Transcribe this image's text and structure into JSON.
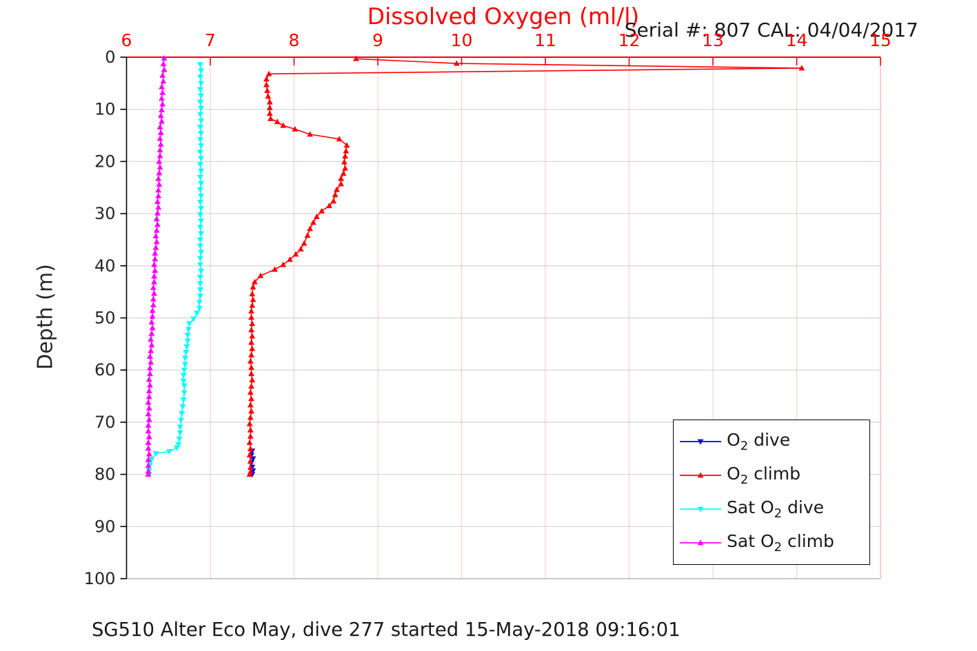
{
  "title": "Dissolved Oxygen (ml/l)",
  "annotation": "Serial #: 807  CAL: 04/04/2017",
  "caption": "SG510 Alter Eco May, dive 277 started 15-May-2018 09:16:01",
  "colors": {
    "axis_x": "#ff0000",
    "axis_y": "#000000",
    "grid_x": "rgba(255,0,0,0.16)",
    "grid_y": "rgba(0,0,0,0.15)",
    "tick_label_x": "#ff0000",
    "tick_label_y": "#262626"
  },
  "chart_data": {
    "type": "line",
    "title": "Dissolved Oxygen (ml/l)",
    "xlabel": "Dissolved Oxygen (ml/l)",
    "ylabel": "Depth (m)",
    "xlim": [
      6,
      15
    ],
    "ylim": [
      0,
      100
    ],
    "y_inverted": true,
    "x_axis_position": "top",
    "x_ticks": [
      6,
      7,
      8,
      9,
      10,
      11,
      12,
      13,
      14,
      15
    ],
    "y_ticks": [
      0,
      10,
      20,
      30,
      40,
      50,
      60,
      70,
      80,
      90,
      100
    ],
    "grid": "on",
    "legend_position": "lower right",
    "series": [
      {
        "name": "O2 dive",
        "label_pre": "O",
        "label_sub": "2",
        "label_post": " dive",
        "color": "#0000dd",
        "marker": "down",
        "points": [
          [
            7.5,
            75.5
          ],
          [
            7.49,
            76.3
          ],
          [
            7.51,
            77.0
          ],
          [
            7.49,
            77.8
          ],
          [
            7.5,
            78.6
          ],
          [
            7.51,
            79.3
          ],
          [
            7.5,
            80.0
          ]
        ]
      },
      {
        "name": "O2 climb",
        "label_pre": "O",
        "label_sub": "2",
        "label_post": " climb",
        "color": "#ff0000",
        "marker": "up",
        "points": [
          [
            8.74,
            0.3
          ],
          [
            9.94,
            1.2
          ],
          [
            14.06,
            2.1
          ],
          [
            7.7,
            3.2
          ],
          [
            7.67,
            4.2
          ],
          [
            7.67,
            5.3
          ],
          [
            7.68,
            6.4
          ],
          [
            7.69,
            7.5
          ],
          [
            7.71,
            8.6
          ],
          [
            7.71,
            9.7
          ],
          [
            7.71,
            10.8
          ],
          [
            7.72,
            11.8
          ],
          [
            7.8,
            12.4
          ],
          [
            7.87,
            13.1
          ],
          [
            8.01,
            13.8
          ],
          [
            8.19,
            14.8
          ],
          [
            8.54,
            15.7
          ],
          [
            8.63,
            16.9
          ],
          [
            8.62,
            18.0
          ],
          [
            8.61,
            19.0
          ],
          [
            8.6,
            20.1
          ],
          [
            8.61,
            21.3
          ],
          [
            8.59,
            22.3
          ],
          [
            8.56,
            23.3
          ],
          [
            8.56,
            24.3
          ],
          [
            8.51,
            25.4
          ],
          [
            8.49,
            26.4
          ],
          [
            8.47,
            27.6
          ],
          [
            8.42,
            28.5
          ],
          [
            8.33,
            29.5
          ],
          [
            8.27,
            30.6
          ],
          [
            8.23,
            31.7
          ],
          [
            8.19,
            32.9
          ],
          [
            8.16,
            34.2
          ],
          [
            8.12,
            35.7
          ],
          [
            8.08,
            36.8
          ],
          [
            8.02,
            37.8
          ],
          [
            7.95,
            38.8
          ],
          [
            7.87,
            39.8
          ],
          [
            7.77,
            40.7
          ],
          [
            7.6,
            41.9
          ],
          [
            7.53,
            43.1
          ],
          [
            7.51,
            44.1
          ],
          [
            7.5,
            45.4
          ],
          [
            7.51,
            46.5
          ],
          [
            7.5,
            47.6
          ],
          [
            7.49,
            48.7
          ],
          [
            7.49,
            49.9
          ],
          [
            7.5,
            51.1
          ],
          [
            7.49,
            52.3
          ],
          [
            7.5,
            53.5
          ],
          [
            7.49,
            54.7
          ],
          [
            7.5,
            55.9
          ],
          [
            7.49,
            57.1
          ],
          [
            7.48,
            58.3
          ],
          [
            7.49,
            59.5
          ],
          [
            7.49,
            60.7
          ],
          [
            7.5,
            61.9
          ],
          [
            7.49,
            63.1
          ],
          [
            7.48,
            64.3
          ],
          [
            7.49,
            65.5
          ],
          [
            7.48,
            66.7
          ],
          [
            7.49,
            67.9
          ],
          [
            7.48,
            69.1
          ],
          [
            7.47,
            70.3
          ],
          [
            7.48,
            71.5
          ],
          [
            7.48,
            72.7
          ],
          [
            7.47,
            73.9
          ],
          [
            7.48,
            75.1
          ],
          [
            7.47,
            76.3
          ],
          [
            7.48,
            77.5
          ],
          [
            7.48,
            78.7
          ],
          [
            7.48,
            79.5
          ],
          [
            7.47,
            80.0
          ]
        ]
      },
      {
        "name": "Sat O2 dive",
        "label_pre": "Sat O",
        "label_sub": "2",
        "label_post": " dive",
        "color": "#00ffff",
        "marker": "down",
        "points": [
          [
            6.88,
            1.4
          ],
          [
            6.89,
            2.6
          ],
          [
            6.88,
            3.8
          ],
          [
            6.89,
            5.0
          ],
          [
            6.88,
            6.2
          ],
          [
            6.89,
            7.4
          ],
          [
            6.88,
            8.6
          ],
          [
            6.89,
            9.8
          ],
          [
            6.88,
            11.0
          ],
          [
            6.89,
            12.2
          ],
          [
            6.88,
            13.4
          ],
          [
            6.89,
            14.6
          ],
          [
            6.88,
            15.8
          ],
          [
            6.89,
            17.0
          ],
          [
            6.88,
            18.2
          ],
          [
            6.89,
            19.4
          ],
          [
            6.88,
            20.6
          ],
          [
            6.89,
            21.8
          ],
          [
            6.88,
            23.0
          ],
          [
            6.89,
            24.2
          ],
          [
            6.88,
            25.4
          ],
          [
            6.89,
            26.6
          ],
          [
            6.88,
            27.8
          ],
          [
            6.89,
            29.0
          ],
          [
            6.88,
            30.2
          ],
          [
            6.89,
            31.4
          ],
          [
            6.88,
            32.6
          ],
          [
            6.89,
            33.8
          ],
          [
            6.88,
            35.0
          ],
          [
            6.88,
            36.2
          ],
          [
            6.89,
            37.4
          ],
          [
            6.88,
            38.6
          ],
          [
            6.88,
            39.8
          ],
          [
            6.89,
            41.0
          ],
          [
            6.88,
            42.2
          ],
          [
            6.88,
            43.4
          ],
          [
            6.88,
            44.6
          ],
          [
            6.88,
            45.8
          ],
          [
            6.87,
            47.0
          ],
          [
            6.87,
            48.1
          ],
          [
            6.84,
            49.1
          ],
          [
            6.8,
            50.2
          ],
          [
            6.75,
            51.1
          ],
          [
            6.74,
            52.2
          ],
          [
            6.73,
            53.3
          ],
          [
            6.73,
            54.4
          ],
          [
            6.72,
            55.5
          ],
          [
            6.71,
            56.6
          ],
          [
            6.7,
            57.7
          ],
          [
            6.7,
            58.9
          ],
          [
            6.69,
            60.0
          ],
          [
            6.68,
            61.0
          ],
          [
            6.68,
            62.1
          ],
          [
            6.69,
            63.0
          ],
          [
            6.69,
            64.3
          ],
          [
            6.68,
            65.7
          ],
          [
            6.67,
            67.0
          ],
          [
            6.66,
            68.3
          ],
          [
            6.65,
            69.6
          ],
          [
            6.64,
            70.9
          ],
          [
            6.64,
            72.0
          ],
          [
            6.63,
            73.2
          ],
          [
            6.62,
            74.3
          ],
          [
            6.6,
            74.9
          ],
          [
            6.51,
            75.6
          ],
          [
            6.35,
            76.0
          ],
          [
            6.3,
            77.1
          ],
          [
            6.28,
            78.2
          ],
          [
            6.27,
            79.3
          ],
          [
            6.27,
            80.0
          ]
        ]
      },
      {
        "name": "Sat O2 climb",
        "label_pre": "Sat O",
        "label_sub": "2",
        "label_post": " climb",
        "color": "#ff00ff",
        "marker": "up",
        "points": [
          [
            6.45,
            0.2
          ],
          [
            6.44,
            1.3
          ],
          [
            6.45,
            2.4
          ],
          [
            6.43,
            3.5
          ],
          [
            6.44,
            4.6
          ],
          [
            6.42,
            5.7
          ],
          [
            6.43,
            6.8
          ],
          [
            6.42,
            7.9
          ],
          [
            6.43,
            9.0
          ],
          [
            6.42,
            10.1
          ],
          [
            6.41,
            11.2
          ],
          [
            6.42,
            12.3
          ],
          [
            6.4,
            13.4
          ],
          [
            6.41,
            14.5
          ],
          [
            6.4,
            15.6
          ],
          [
            6.41,
            16.7
          ],
          [
            6.4,
            17.8
          ],
          [
            6.4,
            18.9
          ],
          [
            6.39,
            20.0
          ],
          [
            6.4,
            21.1
          ],
          [
            6.39,
            22.2
          ],
          [
            6.38,
            23.3
          ],
          [
            6.39,
            24.4
          ],
          [
            6.38,
            25.5
          ],
          [
            6.38,
            26.6
          ],
          [
            6.37,
            27.7
          ],
          [
            6.38,
            28.8
          ],
          [
            6.37,
            29.9
          ],
          [
            6.36,
            31.0
          ],
          [
            6.37,
            32.1
          ],
          [
            6.36,
            33.2
          ],
          [
            6.35,
            34.3
          ],
          [
            6.36,
            35.4
          ],
          [
            6.35,
            36.5
          ],
          [
            6.34,
            37.6
          ],
          [
            6.34,
            38.7
          ],
          [
            6.33,
            39.8
          ],
          [
            6.34,
            40.9
          ],
          [
            6.33,
            42.0
          ],
          [
            6.33,
            43.1
          ],
          [
            6.32,
            44.2
          ],
          [
            6.33,
            45.3
          ],
          [
            6.32,
            46.4
          ],
          [
            6.32,
            47.5
          ],
          [
            6.31,
            48.6
          ],
          [
            6.31,
            49.7
          ],
          [
            6.3,
            50.8
          ],
          [
            6.31,
            51.9
          ],
          [
            6.3,
            53.0
          ],
          [
            6.29,
            54.1
          ],
          [
            6.3,
            55.2
          ],
          [
            6.29,
            56.3
          ],
          [
            6.28,
            57.4
          ],
          [
            6.29,
            58.5
          ],
          [
            6.28,
            59.6
          ],
          [
            6.28,
            60.7
          ],
          [
            6.27,
            61.8
          ],
          [
            6.28,
            62.9
          ],
          [
            6.27,
            64.0
          ],
          [
            6.27,
            65.1
          ],
          [
            6.26,
            66.2
          ],
          [
            6.27,
            67.3
          ],
          [
            6.26,
            68.4
          ],
          [
            6.27,
            69.5
          ],
          [
            6.26,
            70.6
          ],
          [
            6.26,
            71.7
          ],
          [
            6.27,
            72.8
          ],
          [
            6.26,
            73.9
          ],
          [
            6.26,
            75.0
          ],
          [
            6.27,
            76.1
          ],
          [
            6.26,
            77.2
          ],
          [
            6.26,
            78.3
          ],
          [
            6.26,
            79.4
          ],
          [
            6.26,
            80.0
          ]
        ]
      }
    ]
  }
}
